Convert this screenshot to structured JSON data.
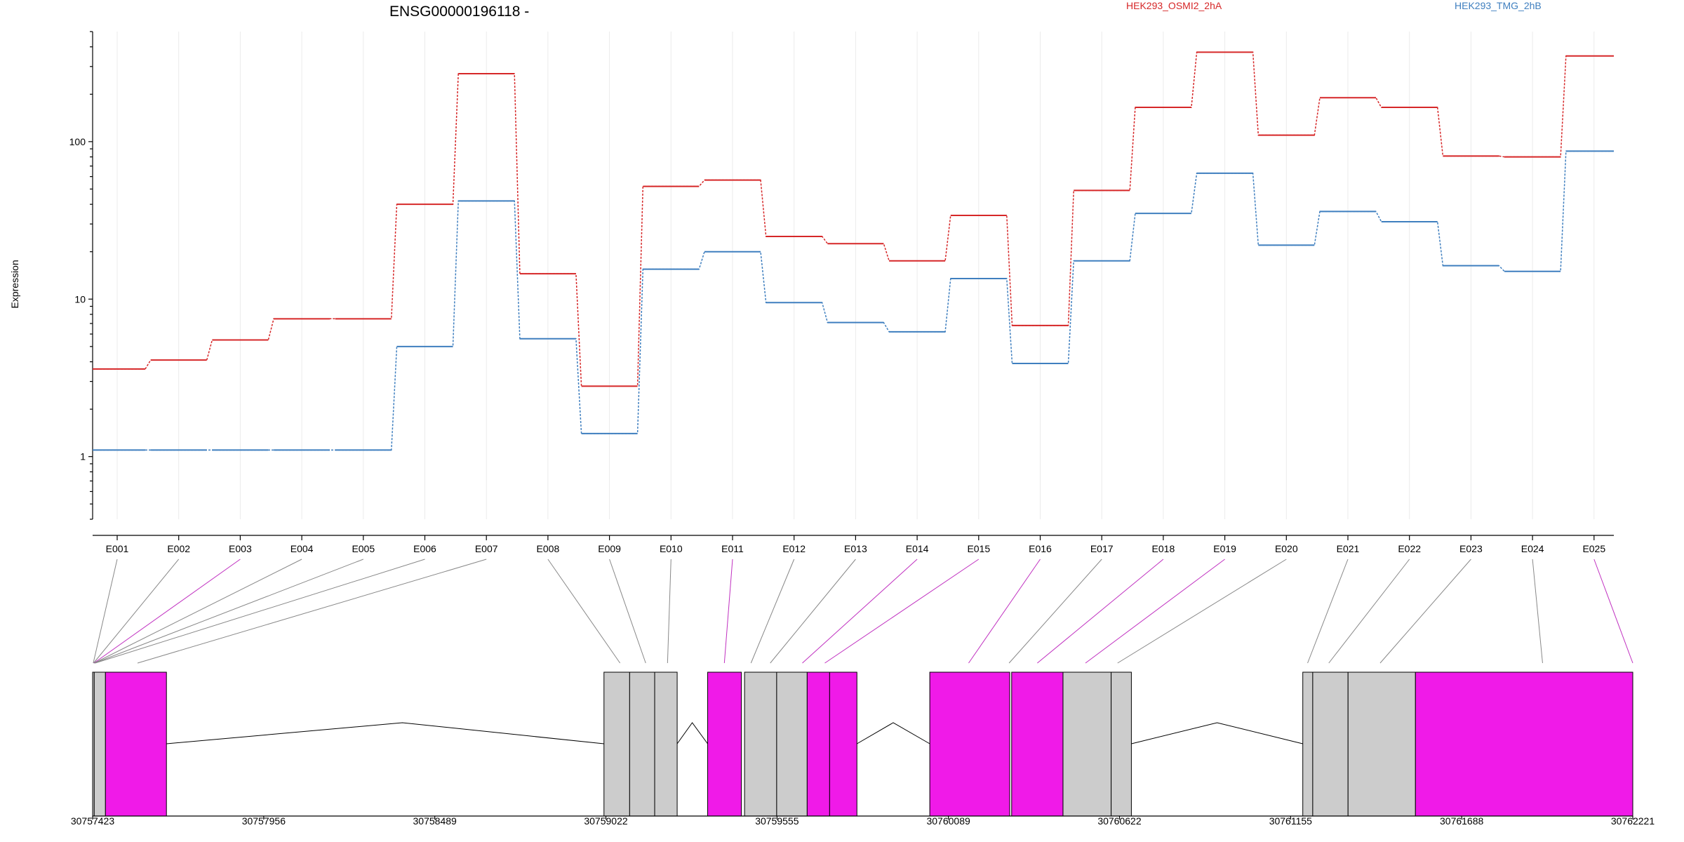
{
  "chart_data": {
    "type": "line",
    "title": "ENSG00000196118 -",
    "ylabel": "Expression",
    "yscale": "log",
    "ylim": [
      0.4,
      500
    ],
    "y_ticks": [
      {
        "value": 1,
        "label": "1"
      },
      {
        "value": 10,
        "label": "10"
      },
      {
        "value": 100,
        "label": "100"
      }
    ],
    "categories": [
      "E001",
      "E002",
      "E003",
      "E004",
      "E005",
      "E006",
      "E007",
      "E008",
      "E009",
      "E010",
      "E011",
      "E012",
      "E013",
      "E014",
      "E015",
      "E016",
      "E017",
      "E018",
      "E019",
      "E020",
      "E021",
      "E022",
      "E023",
      "E024",
      "E025"
    ],
    "series": [
      {
        "name": "HEK293_OSMI2_2hA",
        "color": "#d62728",
        "values": [
          3.6,
          4.1,
          5.5,
          7.5,
          7.5,
          40,
          270,
          14.5,
          2.8,
          52,
          57,
          25,
          22.5,
          17.5,
          34,
          6.8,
          49,
          165,
          370,
          110,
          190,
          165,
          81,
          80,
          350
        ]
      },
      {
        "name": "HEK293_TMG_2hB",
        "color": "#3f7fbf",
        "values": [
          1.1,
          1.1,
          1.1,
          1.1,
          1.1,
          5,
          42,
          5.6,
          1.4,
          15.5,
          20,
          9.5,
          7.1,
          6.2,
          13.5,
          3.9,
          17.5,
          35,
          63,
          22,
          36,
          31,
          16.3,
          15,
          87
        ]
      }
    ],
    "legend_position": "top",
    "grid": true,
    "gene_model": {
      "genomic_ticks": [
        30757423,
        30757956,
        30758489,
        30759022,
        30759555,
        30760089,
        30760622,
        30761155,
        30761688,
        30762221
      ],
      "exon_colors": {
        "highlighted": "#f01ae8",
        "other": "#cccccc"
      },
      "exon_highlighted": [
        false,
        false,
        true,
        false,
        false,
        false,
        false,
        false,
        false,
        false,
        true,
        false,
        false,
        true,
        true,
        true,
        false,
        true,
        true,
        false,
        false,
        false,
        false,
        false,
        true
      ],
      "exons": [
        [
          30757423,
          30757428
        ],
        [
          30757428,
          30757463
        ],
        [
          30757463,
          30757653
        ],
        [
          30759016,
          30759096
        ],
        [
          30759096,
          30759174
        ],
        [
          30759174,
          30759244
        ],
        [
          30759339,
          30759444
        ],
        [
          30759454,
          30759554
        ],
        [
          30759554,
          30759649
        ],
        [
          30759649,
          30759719
        ],
        [
          30759719,
          30759804
        ],
        [
          30760031,
          30760280
        ],
        [
          30760286,
          30760446
        ],
        [
          30760446,
          30760596
        ],
        [
          30760596,
          30760659
        ],
        [
          30761193,
          30761224
        ],
        [
          30761224,
          30761334
        ],
        [
          30761334,
          30761544
        ],
        [
          30761544,
          30762221
        ]
      ],
      "exon_segment_highlighted": [
        false,
        false,
        true,
        false,
        false,
        false,
        true,
        false,
        false,
        true,
        true,
        true,
        true,
        false,
        false,
        false,
        false,
        false,
        true
      ],
      "introns": [
        [
          30757653,
          30759016,
          30758388
        ],
        [
          30759244,
          30759339,
          30759291
        ],
        [
          30759804,
          30760031,
          30759917
        ],
        [
          30760659,
          30761193,
          30760926
        ]
      ],
      "connector_targets": [
        30757425,
        30757426,
        30757427,
        30757428,
        30757429,
        30757431,
        30757563,
        30759066,
        30759146,
        30759214,
        30759391,
        30759474,
        30759534,
        30759634,
        30759704,
        30760152,
        30760278,
        30760366,
        30760516,
        30760616,
        30761208,
        30761274,
        30761434,
        30761940,
        30762221
      ]
    }
  }
}
